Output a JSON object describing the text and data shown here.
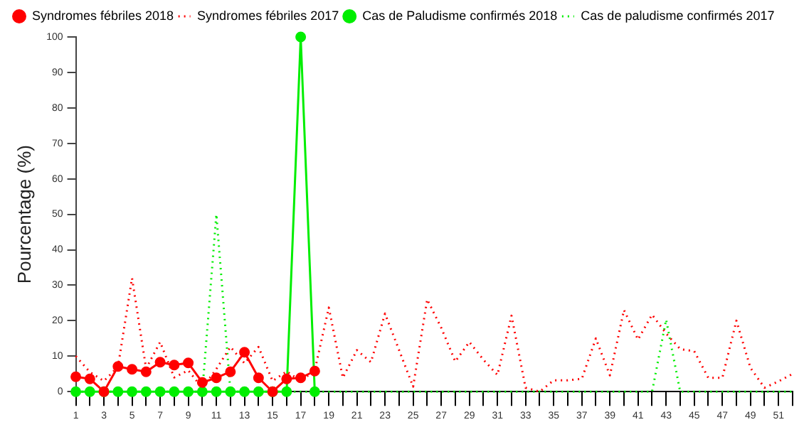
{
  "chart_data": {
    "type": "line",
    "ylabel": "Pourcentage (%)",
    "x": [
      1,
      2,
      3,
      4,
      5,
      6,
      7,
      8,
      9,
      10,
      11,
      12,
      13,
      14,
      15,
      16,
      17,
      18,
      19,
      20,
      21,
      22,
      23,
      24,
      25,
      26,
      27,
      28,
      29,
      30,
      31,
      32,
      33,
      34,
      35,
      36,
      37,
      38,
      39,
      40,
      41,
      42,
      43,
      44,
      45,
      46,
      47,
      48,
      49,
      50,
      51,
      52
    ],
    "xlim": [
      1,
      52
    ],
    "xticks": [
      1,
      {
        "value": 2,
        "label": null
      },
      3,
      {
        "value": 4,
        "label": null
      },
      5,
      {
        "value": 6,
        "label": null
      },
      7,
      {
        "value": 8,
        "label": null
      },
      9,
      {
        "value": 10,
        "label": null
      },
      11,
      {
        "value": 12,
        "label": null
      },
      13,
      {
        "value": 14,
        "label": null
      },
      15,
      {
        "value": 16,
        "label": null
      },
      17,
      {
        "value": 18,
        "label": null
      },
      19,
      {
        "value": 20,
        "label": null
      },
      21,
      {
        "value": 22,
        "label": null
      },
      23,
      {
        "value": 24,
        "label": null
      },
      25,
      {
        "value": 26,
        "label": null
      },
      27,
      {
        "value": 28,
        "label": null
      },
      29,
      {
        "value": 30,
        "label": null
      },
      31,
      {
        "value": 32,
        "label": null
      },
      33,
      {
        "value": 34,
        "label": null
      },
      35,
      {
        "value": 36,
        "label": null
      },
      37,
      {
        "value": 38,
        "label": null
      },
      39,
      {
        "value": 40,
        "label": null
      },
      41,
      {
        "value": 42,
        "label": null
      },
      43,
      {
        "value": 44,
        "label": null
      },
      45,
      {
        "value": 46,
        "label": null
      },
      47,
      {
        "value": 48,
        "label": null
      },
      49,
      {
        "value": 50,
        "label": null
      },
      51,
      {
        "value": 52,
        "label": null
      }
    ],
    "ylim": [
      0,
      100
    ],
    "yticks": [
      0,
      10,
      20,
      30,
      40,
      50,
      60,
      70,
      80,
      90,
      100
    ],
    "grid": false,
    "legend": "top left",
    "series": [
      {
        "name": "Syndromes fébriles 2018",
        "color": "#ff0000",
        "marker": "circle",
        "line_style": "solid",
        "values": [
          4.2,
          3.6,
          0,
          7.1,
          6.3,
          5.6,
          8.3,
          7.5,
          8.1,
          2.6,
          3.9,
          5.6,
          11.1,
          3.9,
          0,
          3.6,
          3.9,
          5.8,
          null,
          null,
          null,
          null,
          null,
          null,
          null,
          null,
          null,
          null,
          null,
          null,
          null,
          null,
          null,
          null,
          null,
          null,
          null,
          null,
          null,
          null,
          null,
          null,
          null,
          null,
          null,
          null,
          null,
          null,
          null,
          null,
          null,
          null
        ]
      },
      {
        "name": "Syndromes fébriles 2017",
        "color": "#ff0000",
        "marker": "none",
        "line_style": "dotted",
        "values": [
          10,
          5.5,
          3,
          7,
          32,
          6.5,
          14,
          4,
          6,
          1,
          6.4,
          12.6,
          8,
          12.6,
          3,
          5.7,
          3,
          6,
          23.7,
          3.9,
          11.7,
          8.3,
          22,
          11.7,
          1.4,
          26,
          18,
          8.5,
          14,
          9,
          4.7,
          21.4,
          1.1,
          0,
          3.2,
          3.2,
          3.6,
          15,
          4.6,
          23,
          14.7,
          21.7,
          16.4,
          12,
          11.4,
          3.9,
          3.9,
          20,
          6.7,
          1.1,
          2.9,
          5
        ]
      },
      {
        "name": "Cas de Paludisme confirmés 2018",
        "color": "#00ee00",
        "marker": "circle",
        "line_style": "solid",
        "values": [
          0,
          0,
          0,
          0,
          0,
          0,
          0,
          0,
          0,
          0,
          0,
          0,
          0,
          0,
          0,
          0,
          100,
          0,
          null,
          null,
          null,
          null,
          null,
          null,
          null,
          null,
          null,
          null,
          null,
          null,
          null,
          null,
          null,
          null,
          null,
          null,
          null,
          null,
          null,
          null,
          null,
          null,
          null,
          null,
          null,
          null,
          null,
          null,
          null,
          null,
          null,
          null
        ]
      },
      {
        "name": "Cas de paludisme confirmés 2017",
        "color": "#00ee00",
        "marker": "none",
        "line_style": "dotted",
        "values": [
          0,
          0,
          0,
          0,
          0,
          0,
          0,
          0,
          0,
          0,
          50,
          0,
          0,
          0,
          0,
          0,
          0,
          0,
          0,
          0,
          0,
          0,
          0,
          0,
          0,
          0,
          0,
          0,
          0,
          0,
          0,
          0,
          0,
          0,
          0,
          0,
          0,
          0,
          0,
          0,
          0,
          0,
          20.3,
          0,
          0,
          0,
          0,
          0,
          0,
          0,
          0,
          0
        ]
      }
    ]
  }
}
